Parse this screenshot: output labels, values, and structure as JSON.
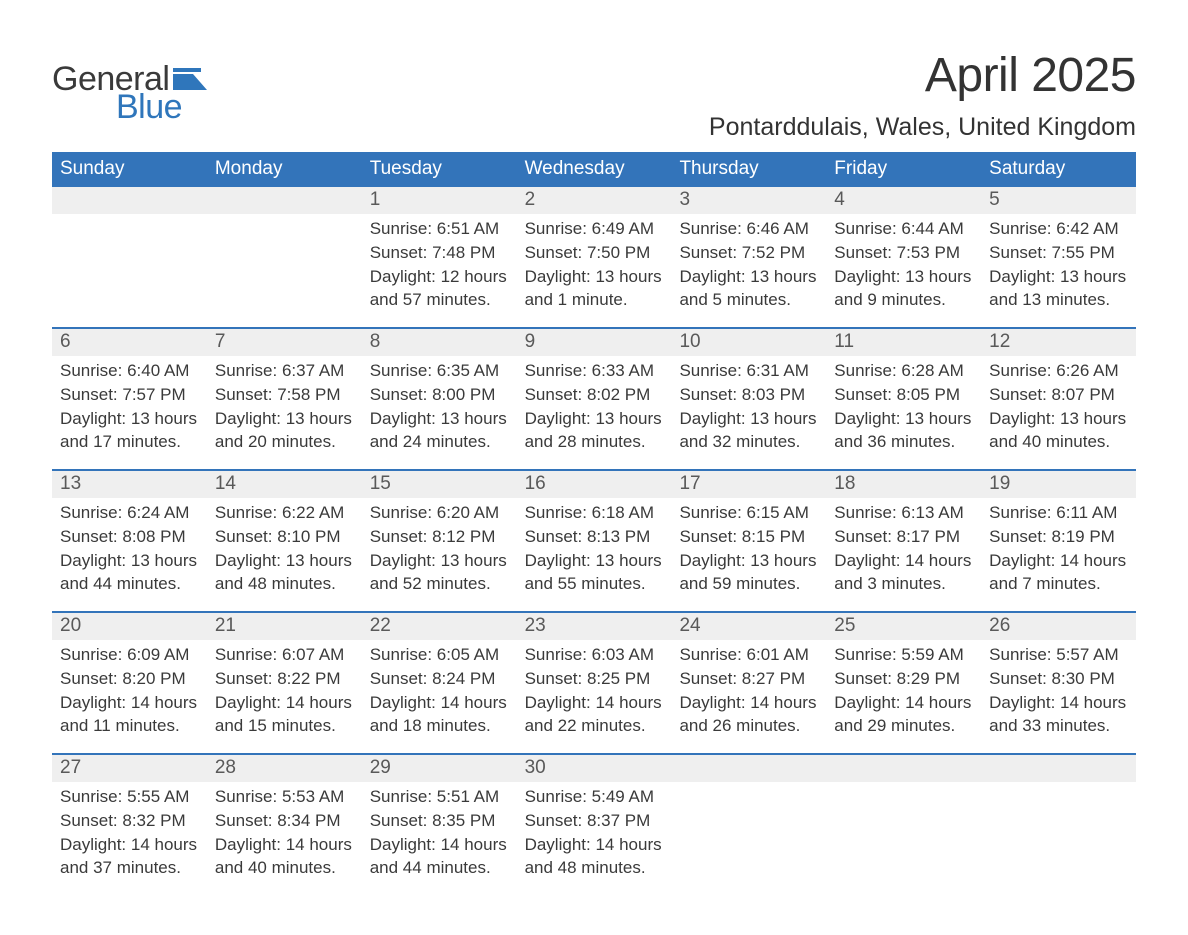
{
  "brand": {
    "general": "General",
    "blue": "Blue"
  },
  "title": "April 2025",
  "subtitle": "Pontarddulais, Wales, United Kingdom",
  "colors": {
    "header_bg": "#3374ba",
    "header_text": "#ffffff",
    "daynum_bg": "#efefef",
    "daynum_text": "#595959",
    "body_text": "#3a3a3a",
    "logo_general": "#3a3a3a",
    "logo_blue": "#2f76bb",
    "page_bg": "#ffffff",
    "week_divider": "#3374ba"
  },
  "typography": {
    "title_fontsize": 48,
    "subtitle_fontsize": 25,
    "dayhead_fontsize": 19,
    "daynum_fontsize": 19,
    "body_fontsize": 17,
    "font_family": "Arial"
  },
  "day_headers": [
    "Sunday",
    "Monday",
    "Tuesday",
    "Wednesday",
    "Thursday",
    "Friday",
    "Saturday"
  ],
  "weeks": [
    {
      "days": [
        {
          "n": "",
          "sunrise": "",
          "sunset": "",
          "daylight1": "",
          "daylight2": ""
        },
        {
          "n": "",
          "sunrise": "",
          "sunset": "",
          "daylight1": "",
          "daylight2": ""
        },
        {
          "n": "1",
          "sunrise": "Sunrise: 6:51 AM",
          "sunset": "Sunset: 7:48 PM",
          "daylight1": "Daylight: 12 hours",
          "daylight2": "and 57 minutes."
        },
        {
          "n": "2",
          "sunrise": "Sunrise: 6:49 AM",
          "sunset": "Sunset: 7:50 PM",
          "daylight1": "Daylight: 13 hours",
          "daylight2": "and 1 minute."
        },
        {
          "n": "3",
          "sunrise": "Sunrise: 6:46 AM",
          "sunset": "Sunset: 7:52 PM",
          "daylight1": "Daylight: 13 hours",
          "daylight2": "and 5 minutes."
        },
        {
          "n": "4",
          "sunrise": "Sunrise: 6:44 AM",
          "sunset": "Sunset: 7:53 PM",
          "daylight1": "Daylight: 13 hours",
          "daylight2": "and 9 minutes."
        },
        {
          "n": "5",
          "sunrise": "Sunrise: 6:42 AM",
          "sunset": "Sunset: 7:55 PM",
          "daylight1": "Daylight: 13 hours",
          "daylight2": "and 13 minutes."
        }
      ]
    },
    {
      "days": [
        {
          "n": "6",
          "sunrise": "Sunrise: 6:40 AM",
          "sunset": "Sunset: 7:57 PM",
          "daylight1": "Daylight: 13 hours",
          "daylight2": "and 17 minutes."
        },
        {
          "n": "7",
          "sunrise": "Sunrise: 6:37 AM",
          "sunset": "Sunset: 7:58 PM",
          "daylight1": "Daylight: 13 hours",
          "daylight2": "and 20 minutes."
        },
        {
          "n": "8",
          "sunrise": "Sunrise: 6:35 AM",
          "sunset": "Sunset: 8:00 PM",
          "daylight1": "Daylight: 13 hours",
          "daylight2": "and 24 minutes."
        },
        {
          "n": "9",
          "sunrise": "Sunrise: 6:33 AM",
          "sunset": "Sunset: 8:02 PM",
          "daylight1": "Daylight: 13 hours",
          "daylight2": "and 28 minutes."
        },
        {
          "n": "10",
          "sunrise": "Sunrise: 6:31 AM",
          "sunset": "Sunset: 8:03 PM",
          "daylight1": "Daylight: 13 hours",
          "daylight2": "and 32 minutes."
        },
        {
          "n": "11",
          "sunrise": "Sunrise: 6:28 AM",
          "sunset": "Sunset: 8:05 PM",
          "daylight1": "Daylight: 13 hours",
          "daylight2": "and 36 minutes."
        },
        {
          "n": "12",
          "sunrise": "Sunrise: 6:26 AM",
          "sunset": "Sunset: 8:07 PM",
          "daylight1": "Daylight: 13 hours",
          "daylight2": "and 40 minutes."
        }
      ]
    },
    {
      "days": [
        {
          "n": "13",
          "sunrise": "Sunrise: 6:24 AM",
          "sunset": "Sunset: 8:08 PM",
          "daylight1": "Daylight: 13 hours",
          "daylight2": "and 44 minutes."
        },
        {
          "n": "14",
          "sunrise": "Sunrise: 6:22 AM",
          "sunset": "Sunset: 8:10 PM",
          "daylight1": "Daylight: 13 hours",
          "daylight2": "and 48 minutes."
        },
        {
          "n": "15",
          "sunrise": "Sunrise: 6:20 AM",
          "sunset": "Sunset: 8:12 PM",
          "daylight1": "Daylight: 13 hours",
          "daylight2": "and 52 minutes."
        },
        {
          "n": "16",
          "sunrise": "Sunrise: 6:18 AM",
          "sunset": "Sunset: 8:13 PM",
          "daylight1": "Daylight: 13 hours",
          "daylight2": "and 55 minutes."
        },
        {
          "n": "17",
          "sunrise": "Sunrise: 6:15 AM",
          "sunset": "Sunset: 8:15 PM",
          "daylight1": "Daylight: 13 hours",
          "daylight2": "and 59 minutes."
        },
        {
          "n": "18",
          "sunrise": "Sunrise: 6:13 AM",
          "sunset": "Sunset: 8:17 PM",
          "daylight1": "Daylight: 14 hours",
          "daylight2": "and 3 minutes."
        },
        {
          "n": "19",
          "sunrise": "Sunrise: 6:11 AM",
          "sunset": "Sunset: 8:19 PM",
          "daylight1": "Daylight: 14 hours",
          "daylight2": "and 7 minutes."
        }
      ]
    },
    {
      "days": [
        {
          "n": "20",
          "sunrise": "Sunrise: 6:09 AM",
          "sunset": "Sunset: 8:20 PM",
          "daylight1": "Daylight: 14 hours",
          "daylight2": "and 11 minutes."
        },
        {
          "n": "21",
          "sunrise": "Sunrise: 6:07 AM",
          "sunset": "Sunset: 8:22 PM",
          "daylight1": "Daylight: 14 hours",
          "daylight2": "and 15 minutes."
        },
        {
          "n": "22",
          "sunrise": "Sunrise: 6:05 AM",
          "sunset": "Sunset: 8:24 PM",
          "daylight1": "Daylight: 14 hours",
          "daylight2": "and 18 minutes."
        },
        {
          "n": "23",
          "sunrise": "Sunrise: 6:03 AM",
          "sunset": "Sunset: 8:25 PM",
          "daylight1": "Daylight: 14 hours",
          "daylight2": "and 22 minutes."
        },
        {
          "n": "24",
          "sunrise": "Sunrise: 6:01 AM",
          "sunset": "Sunset: 8:27 PM",
          "daylight1": "Daylight: 14 hours",
          "daylight2": "and 26 minutes."
        },
        {
          "n": "25",
          "sunrise": "Sunrise: 5:59 AM",
          "sunset": "Sunset: 8:29 PM",
          "daylight1": "Daylight: 14 hours",
          "daylight2": "and 29 minutes."
        },
        {
          "n": "26",
          "sunrise": "Sunrise: 5:57 AM",
          "sunset": "Sunset: 8:30 PM",
          "daylight1": "Daylight: 14 hours",
          "daylight2": "and 33 minutes."
        }
      ]
    },
    {
      "days": [
        {
          "n": "27",
          "sunrise": "Sunrise: 5:55 AM",
          "sunset": "Sunset: 8:32 PM",
          "daylight1": "Daylight: 14 hours",
          "daylight2": "and 37 minutes."
        },
        {
          "n": "28",
          "sunrise": "Sunrise: 5:53 AM",
          "sunset": "Sunset: 8:34 PM",
          "daylight1": "Daylight: 14 hours",
          "daylight2": "and 40 minutes."
        },
        {
          "n": "29",
          "sunrise": "Sunrise: 5:51 AM",
          "sunset": "Sunset: 8:35 PM",
          "daylight1": "Daylight: 14 hours",
          "daylight2": "and 44 minutes."
        },
        {
          "n": "30",
          "sunrise": "Sunrise: 5:49 AM",
          "sunset": "Sunset: 8:37 PM",
          "daylight1": "Daylight: 14 hours",
          "daylight2": "and 48 minutes."
        },
        {
          "n": "",
          "sunrise": "",
          "sunset": "",
          "daylight1": "",
          "daylight2": ""
        },
        {
          "n": "",
          "sunrise": "",
          "sunset": "",
          "daylight1": "",
          "daylight2": ""
        },
        {
          "n": "",
          "sunrise": "",
          "sunset": "",
          "daylight1": "",
          "daylight2": ""
        }
      ]
    }
  ]
}
